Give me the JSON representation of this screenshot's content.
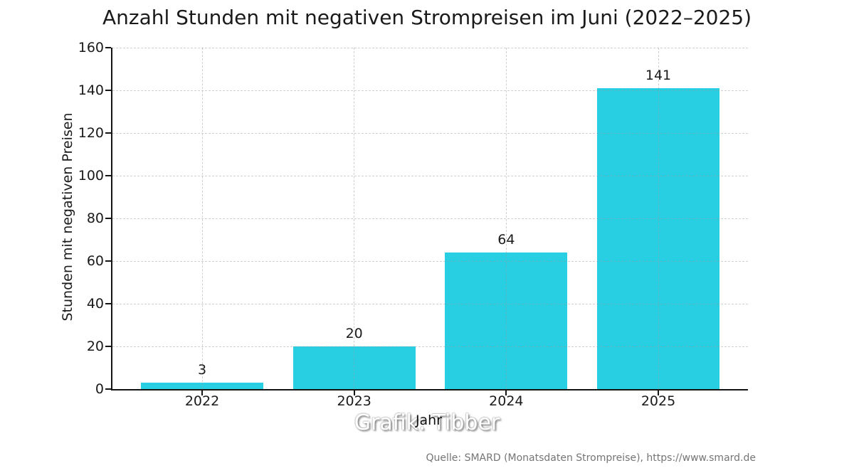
{
  "title": "Anzahl Stunden mit negativen Strompreisen im Juni (2022–2025)",
  "watermark": "Grafik: Tibber",
  "source": "Quelle: SMARD (Monatsdaten Strompreise), https://www.smard.de",
  "chart_data": {
    "type": "bar",
    "title": "Anzahl Stunden mit negativen Strompreisen im Juni (2022–2025)",
    "categories": [
      "2022",
      "2023",
      "2024",
      "2025"
    ],
    "values": [
      3,
      20,
      64,
      141
    ],
    "xlabel": "Jahr",
    "ylabel": "Stunden mit negativen Preisen",
    "ylim": [
      0,
      160
    ],
    "yticks": [
      0,
      20,
      40,
      60,
      80,
      100,
      120,
      140,
      160
    ],
    "grid": true,
    "grid_style": "dashed",
    "legend": false,
    "bar_color": "#28CFE3",
    "grid_color": "#c9c9c9",
    "axis_color": "#151515",
    "text_color": "#1a1a1a",
    "source_color": "#757575"
  }
}
